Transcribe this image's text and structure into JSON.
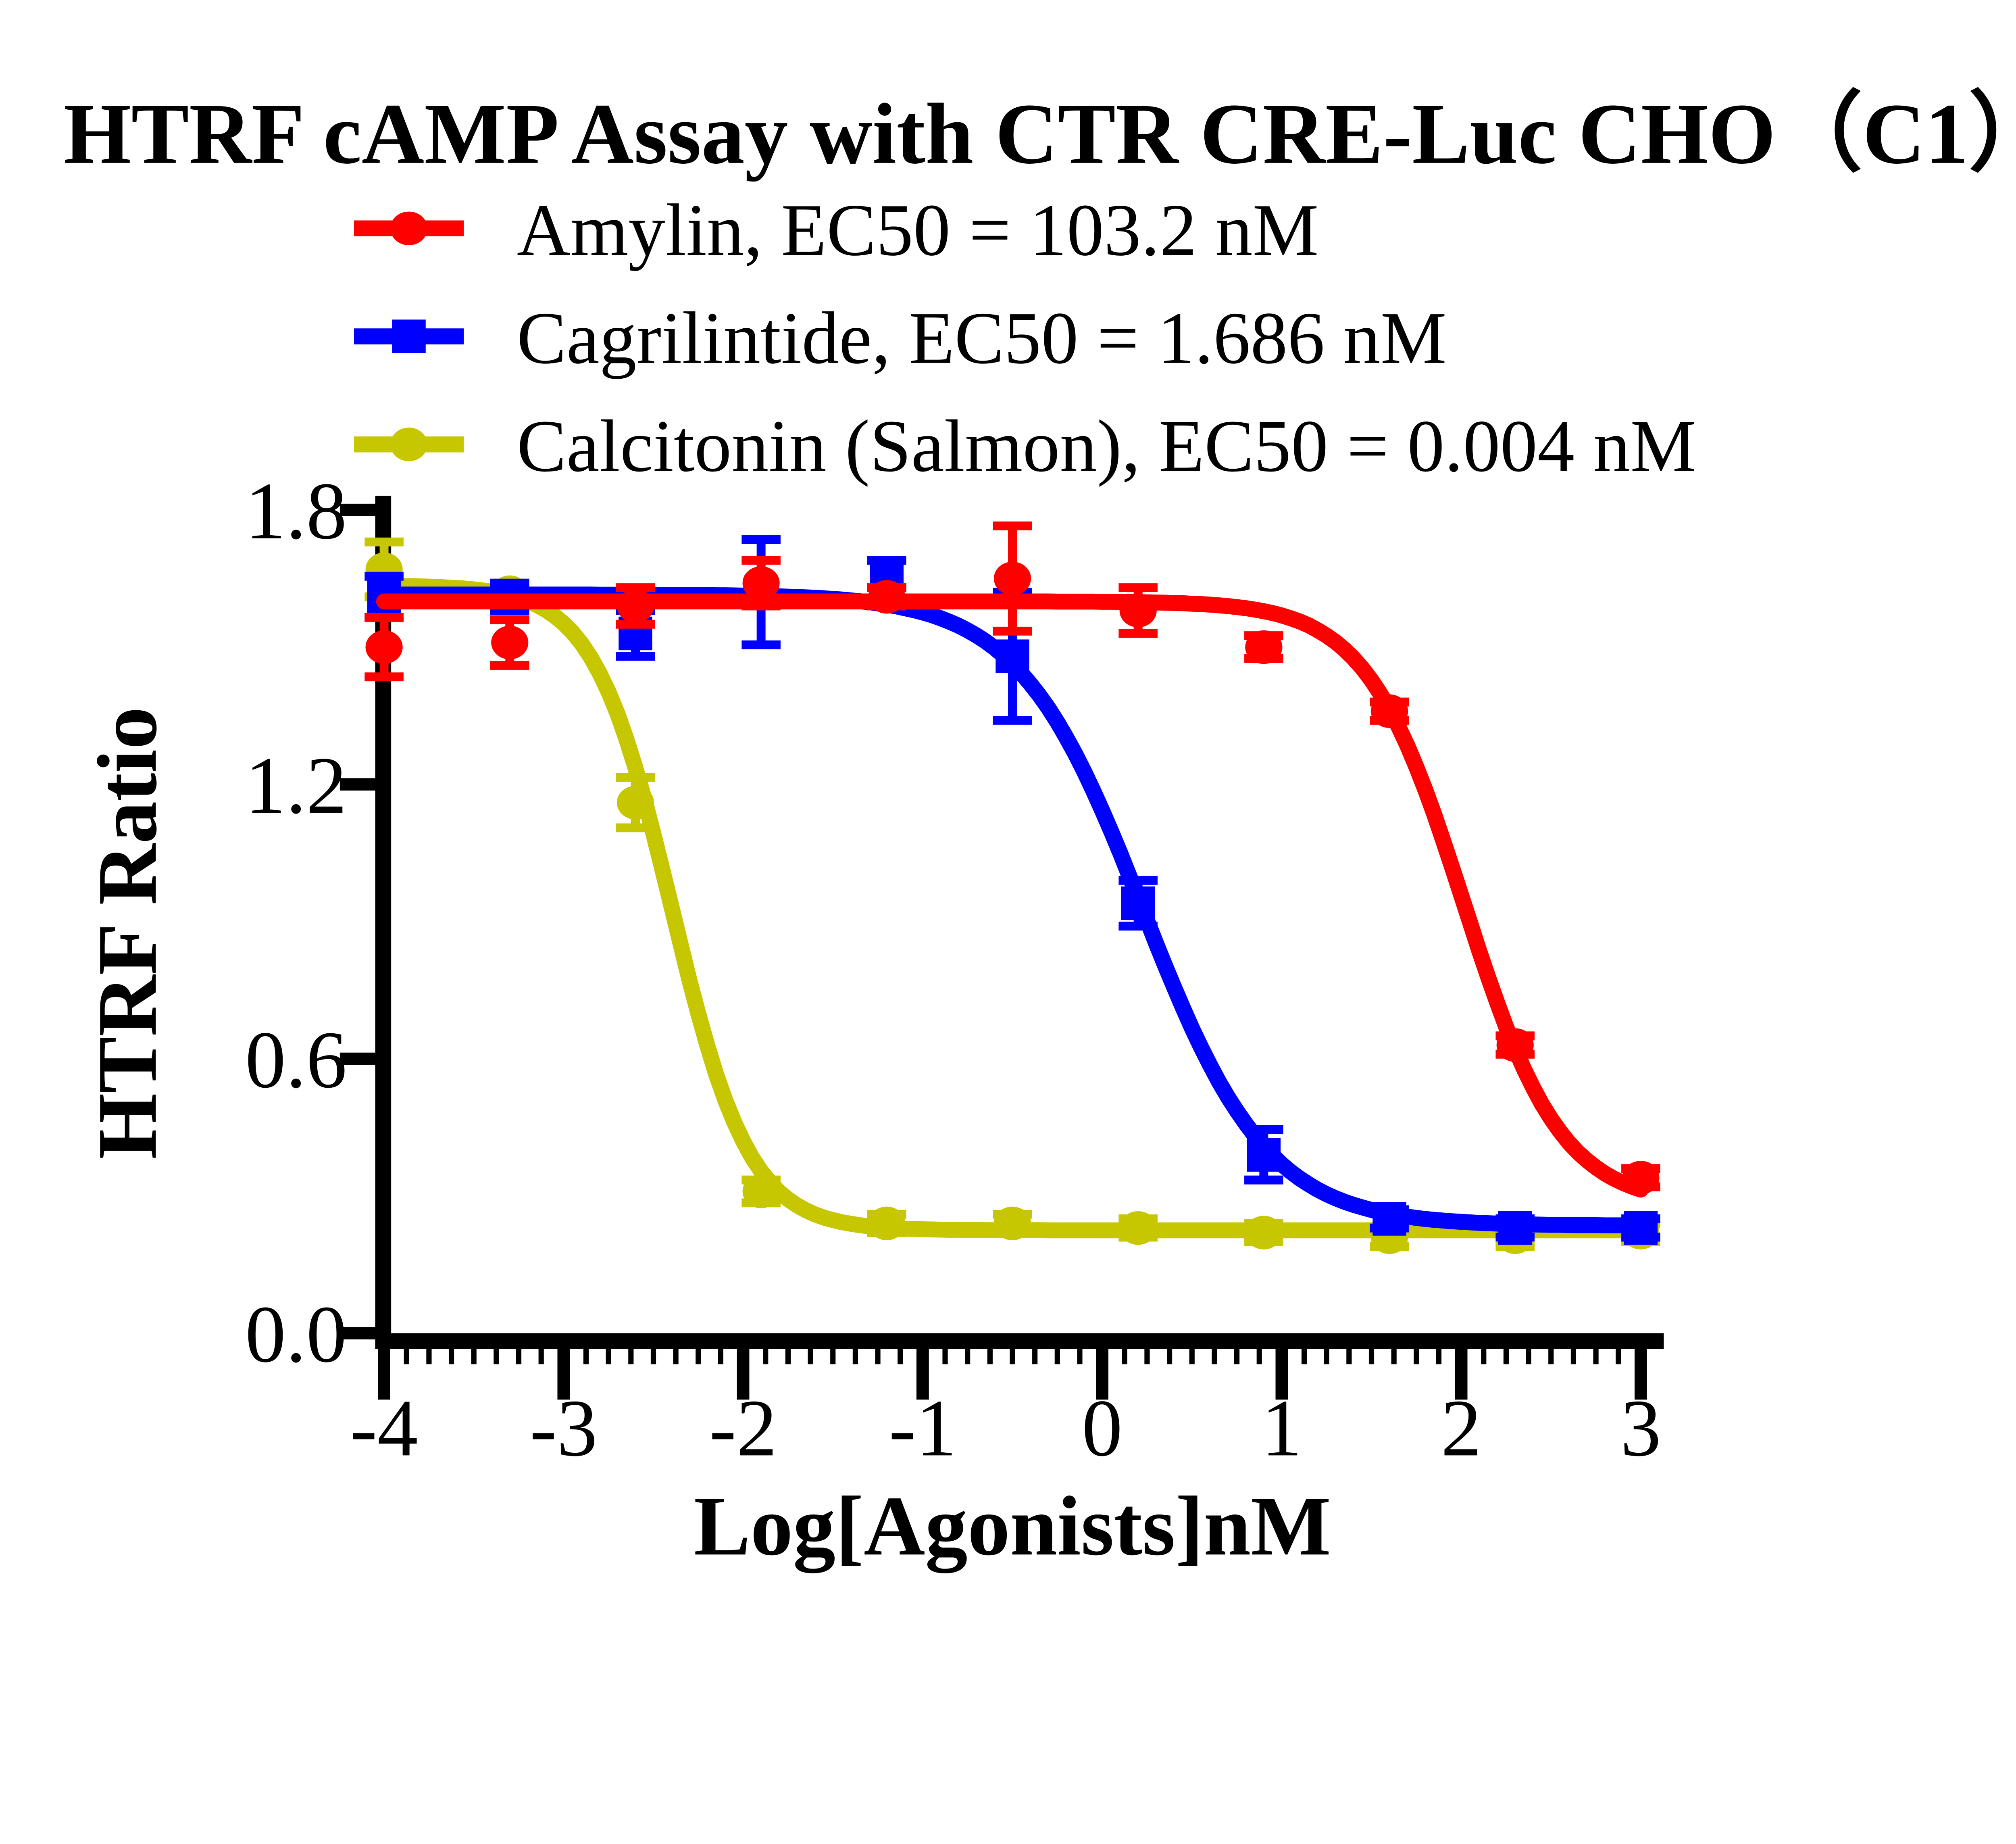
{
  "chart_data": {
    "type": "line",
    "title": "HTRF cAMP Assay with CTR CRE-Luc CHO（C1）",
    "xlabel": "Log[Agonists]nM",
    "ylabel": "HTRF Ratio",
    "xlim": [
      -4,
      3
    ],
    "ylim": [
      0.0,
      1.8
    ],
    "xticks": [
      "-4",
      "-3",
      "-2",
      "-1",
      "0",
      "1",
      "2",
      "3"
    ],
    "yticks": [
      "0.0",
      "0.6",
      "1.2",
      "1.8"
    ],
    "ytick_values": [
      0.0,
      0.6,
      1.2,
      1.8
    ],
    "xtick_values": [
      -4,
      -3,
      -2,
      -1,
      0,
      1,
      2,
      3
    ],
    "x_minor_interval": 0.125,
    "grid": "off",
    "legend_position": "top-left",
    "background": "#FFFFFF",
    "axis_color": "#000000",
    "x": [
      -4.0,
      -3.3,
      -2.6,
      -1.9,
      -1.2,
      -0.5,
      0.2,
      0.9,
      1.6,
      2.3,
      3.0
    ],
    "series": [
      {
        "name": "Amylin",
        "label": "Amylin, EC50 = 103.2 nM",
        "ec50_nM": 103.2,
        "color": "#FF0000",
        "marker": "circle",
        "values": [
          1.5,
          1.51,
          1.59,
          1.64,
          1.61,
          1.65,
          1.58,
          1.5,
          1.36,
          0.63,
          0.34
        ],
        "errors": [
          0.065,
          0.05,
          0.04,
          0.05,
          0.02,
          0.115,
          0.05,
          0.025,
          0.02,
          0.02,
          0.02
        ],
        "fit": {
          "top": 1.6,
          "bottom": 0.28,
          "logEC50": 2.014,
          "hill": 1.6
        }
      },
      {
        "name": "Cagrilintide",
        "label": "Cagrilintide, EC50 = 1.686 nM",
        "ec50_nM": 1.686,
        "color": "#0000FF",
        "marker": "square",
        "values": [
          1.61,
          1.61,
          1.53,
          1.62,
          1.66,
          1.48,
          0.94,
          0.39,
          0.25,
          0.23,
          0.23
        ],
        "errors": [
          0.045,
          0.03,
          0.05,
          0.115,
          0.03,
          0.14,
          0.05,
          0.055,
          0.02,
          0.02,
          0.02
        ],
        "fit": {
          "top": 1.615,
          "bottom": 0.235,
          "logEC50": 0.227,
          "hill": 1.25
        }
      },
      {
        "name": "Calcitonin (Salmon)",
        "label": "Calcitonin (Salmon), EC50 = 0.004 nM",
        "ec50_nM": 0.004,
        "color": "#C6C700",
        "marker": "circle",
        "values": [
          1.67,
          1.62,
          1.16,
          0.31,
          0.24,
          0.24,
          0.23,
          0.22,
          0.21,
          0.21,
          0.22
        ],
        "errors": [
          0.06,
          0.02,
          0.055,
          0.025,
          0.02,
          0.02,
          0.02,
          0.02,
          0.02,
          0.02,
          0.02
        ],
        "fit": {
          "top": 1.635,
          "bottom": 0.225,
          "logEC50": -2.398,
          "hill": 2.0
        }
      }
    ]
  }
}
